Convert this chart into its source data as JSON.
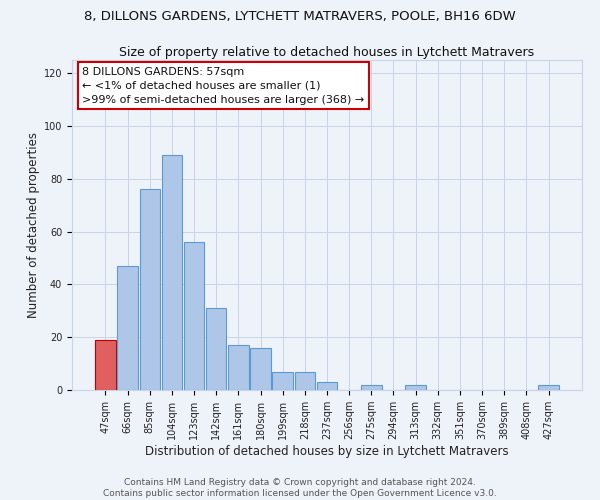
{
  "title": "8, DILLONS GARDENS, LYTCHETT MATRAVERS, POOLE, BH16 6DW",
  "subtitle": "Size of property relative to detached houses in Lytchett Matravers",
  "xlabel": "Distribution of detached houses by size in Lytchett Matravers",
  "ylabel": "Number of detached properties",
  "bar_labels": [
    "47sqm",
    "66sqm",
    "85sqm",
    "104sqm",
    "123sqm",
    "142sqm",
    "161sqm",
    "180sqm",
    "199sqm",
    "218sqm",
    "237sqm",
    "256sqm",
    "275sqm",
    "294sqm",
    "313sqm",
    "332sqm",
    "351sqm",
    "370sqm",
    "389sqm",
    "408sqm",
    "427sqm"
  ],
  "bar_values": [
    19,
    47,
    76,
    89,
    56,
    31,
    17,
    16,
    7,
    7,
    3,
    0,
    2,
    0,
    2,
    0,
    0,
    0,
    0,
    0,
    2
  ],
  "bar_color": "#aec6e8",
  "bar_edge_color": "#5b9bd5",
  "highlight_bar_index": 0,
  "highlight_bar_color": "#e06060",
  "highlight_bar_edge_color": "#c00000",
  "annotation_line1": "8 DILLONS GARDENS: 57sqm",
  "annotation_line2": "← <1% of detached houses are smaller (1)",
  "annotation_line3": ">99% of semi-detached houses are larger (368) →",
  "annotation_box_facecolor": "#ffffff",
  "annotation_box_edgecolor": "#cc0000",
  "ylim": [
    0,
    125
  ],
  "yticks": [
    0,
    20,
    40,
    60,
    80,
    100,
    120
  ],
  "footer_line1": "Contains HM Land Registry data © Crown copyright and database right 2024.",
  "footer_line2": "Contains public sector information licensed under the Open Government Licence v3.0.",
  "background_color": "#eef2f9",
  "plot_background_color": "#eef2f9",
  "grid_color": "#c8d4e8",
  "title_fontsize": 9.5,
  "axis_label_fontsize": 8.5,
  "tick_fontsize": 7,
  "footer_fontsize": 6.5,
  "annotation_fontsize": 8
}
